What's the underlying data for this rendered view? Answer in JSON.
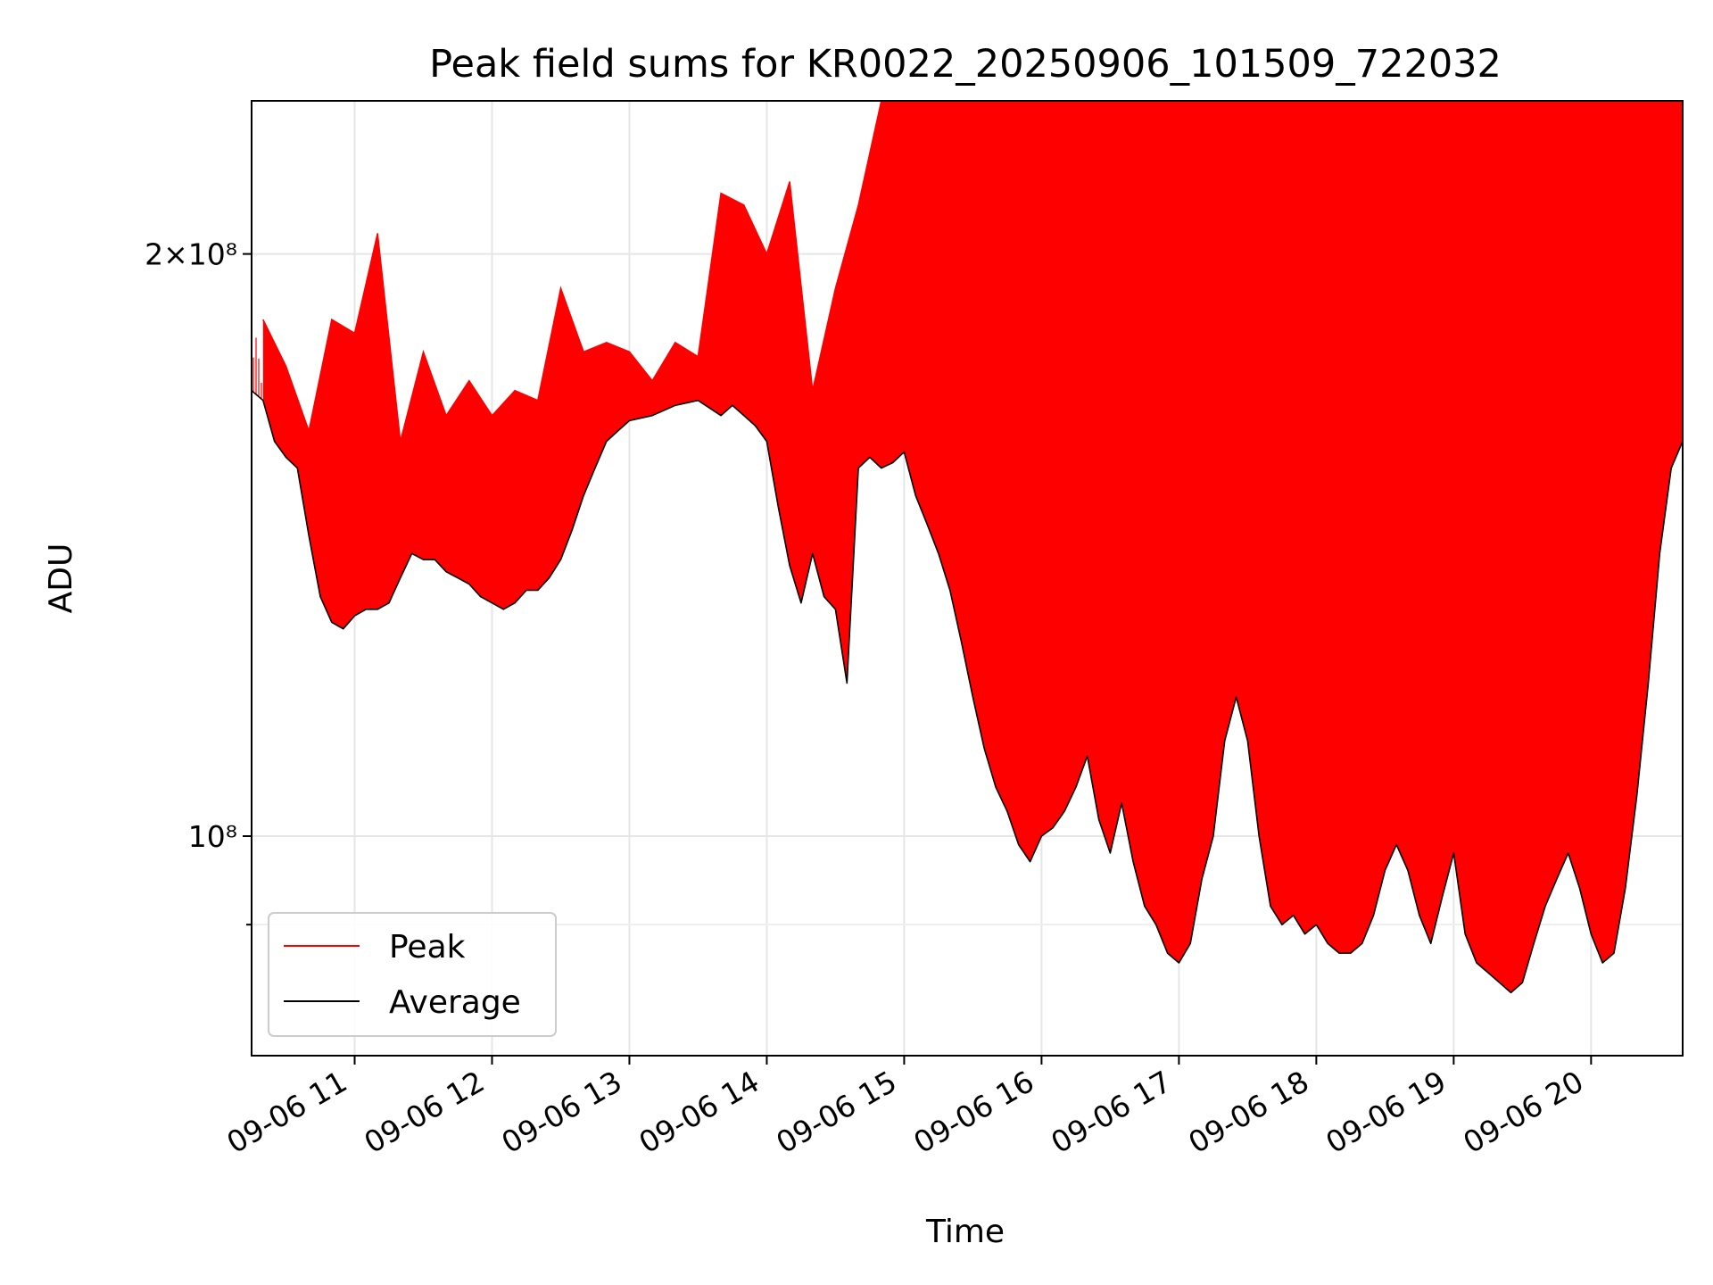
{
  "chart_data": {
    "type": "line",
    "title": "Peak field sums for KR0022_20250906_101509_722032",
    "xlabel": "Time",
    "ylabel": "ADU",
    "yscale": "log",
    "xlim": [
      "09-06 10:15",
      "09-06 20:40"
    ],
    "ylim": [
      77000000,
      240000000
    ],
    "grid": true,
    "legend_position": "lower-left",
    "x_ticks": [
      {
        "value": "09-06 11:00",
        "label": "09-06 11"
      },
      {
        "value": "09-06 12:00",
        "label": "09-06 12"
      },
      {
        "value": "09-06 13:00",
        "label": "09-06 13"
      },
      {
        "value": "09-06 14:00",
        "label": "09-06 14"
      },
      {
        "value": "09-06 15:00",
        "label": "09-06 15"
      },
      {
        "value": "09-06 16:00",
        "label": "09-06 16"
      },
      {
        "value": "09-06 17:00",
        "label": "09-06 17"
      },
      {
        "value": "09-06 18:00",
        "label": "09-06 18"
      },
      {
        "value": "09-06 19:00",
        "label": "09-06 19"
      },
      {
        "value": "09-06 20:00",
        "label": "09-06 20"
      }
    ],
    "y_ticks": [
      {
        "value": 200000000,
        "label": "2×10⁸"
      },
      {
        "value": 100000000,
        "label": "10⁸"
      }
    ],
    "y_minor_ticks": [
      90000000
    ],
    "series": [
      {
        "name": "Average",
        "color": "#000000",
        "x": [
          "09-06 10:15",
          "09-06 10:20",
          "09-06 10:25",
          "09-06 10:30",
          "09-06 10:35",
          "09-06 10:40",
          "09-06 10:45",
          "09-06 10:50",
          "09-06 10:55",
          "09-06 11:00",
          "09-06 11:05",
          "09-06 11:10",
          "09-06 11:15",
          "09-06 11:20",
          "09-06 11:25",
          "09-06 11:30",
          "09-06 11:35",
          "09-06 11:40",
          "09-06 11:45",
          "09-06 11:50",
          "09-06 11:55",
          "09-06 12:00",
          "09-06 12:05",
          "09-06 12:10",
          "09-06 12:15",
          "09-06 12:20",
          "09-06 12:25",
          "09-06 12:30",
          "09-06 12:35",
          "09-06 12:40",
          "09-06 12:45",
          "09-06 12:50",
          "09-06 12:55",
          "09-06 13:00",
          "09-06 13:10",
          "09-06 13:20",
          "09-06 13:30",
          "09-06 13:40",
          "09-06 13:45",
          "09-06 13:50",
          "09-06 13:55",
          "09-06 14:00",
          "09-06 14:05",
          "09-06 14:10",
          "09-06 14:15",
          "09-06 14:20",
          "09-06 14:25",
          "09-06 14:30",
          "09-06 14:35",
          "09-06 14:40",
          "09-06 14:45",
          "09-06 14:50",
          "09-06 14:55",
          "09-06 15:00",
          "09-06 15:05",
          "09-06 15:10",
          "09-06 15:15",
          "09-06 15:20",
          "09-06 15:25",
          "09-06 15:30",
          "09-06 15:35",
          "09-06 15:40",
          "09-06 15:45",
          "09-06 15:50",
          "09-06 15:55",
          "09-06 16:00",
          "09-06 16:05",
          "09-06 16:10",
          "09-06 16:15",
          "09-06 16:20",
          "09-06 16:25",
          "09-06 16:30",
          "09-06 16:35",
          "09-06 16:40",
          "09-06 16:45",
          "09-06 16:50",
          "09-06 16:55",
          "09-06 17:00",
          "09-06 17:05",
          "09-06 17:10",
          "09-06 17:15",
          "09-06 17:20",
          "09-06 17:25",
          "09-06 17:30",
          "09-06 17:35",
          "09-06 17:40",
          "09-06 17:45",
          "09-06 17:50",
          "09-06 17:55",
          "09-06 18:00",
          "09-06 18:05",
          "09-06 18:10",
          "09-06 18:15",
          "09-06 18:20",
          "09-06 18:25",
          "09-06 18:30",
          "09-06 18:35",
          "09-06 18:40",
          "09-06 18:45",
          "09-06 18:50",
          "09-06 18:55",
          "09-06 19:00",
          "09-06 19:05",
          "09-06 19:10",
          "09-06 19:15",
          "09-06 19:20",
          "09-06 19:25",
          "09-06 19:30",
          "09-06 19:35",
          "09-06 19:40",
          "09-06 19:45",
          "09-06 19:50",
          "09-06 19:55",
          "09-06 20:00",
          "09-06 20:05",
          "09-06 20:10",
          "09-06 20:15",
          "09-06 20:20",
          "09-06 20:25",
          "09-06 20:30",
          "09-06 20:35",
          "09-06 20:40"
        ],
        "y": [
          170000000,
          168000000,
          160000000,
          157000000,
          155000000,
          143000000,
          133000000,
          129000000,
          128000000,
          130000000,
          131000000,
          131000000,
          132000000,
          136000000,
          140000000,
          139000000,
          139000000,
          137000000,
          136000000,
          135000000,
          133000000,
          132000000,
          131000000,
          132000000,
          134000000,
          134000000,
          136000000,
          139000000,
          144000000,
          150000000,
          155000000,
          160000000,
          162000000,
          164000000,
          165000000,
          167000000,
          168000000,
          165000000,
          167000000,
          165000000,
          163000000,
          160000000,
          148000000,
          138000000,
          132000000,
          140000000,
          133000000,
          131000000,
          120000000,
          155000000,
          157000000,
          155000000,
          156000000,
          158000000,
          150000000,
          145000000,
          140000000,
          134000000,
          126000000,
          118000000,
          111000000,
          106000000,
          103000000,
          99000000,
          97000000,
          100000000,
          101000000,
          103000000,
          106000000,
          110000000,
          102000000,
          98000000,
          104000000,
          97000000,
          92000000,
          90000000,
          87000000,
          86000000,
          88000000,
          95000000,
          100000000,
          112000000,
          118000000,
          112000000,
          100000000,
          92000000,
          90000000,
          91000000,
          89000000,
          90000000,
          88000000,
          87000000,
          87000000,
          88000000,
          91000000,
          96000000,
          99000000,
          96000000,
          91000000,
          88000000,
          93000000,
          98000000,
          89000000,
          86000000,
          85000000,
          84000000,
          83000000,
          84000000,
          88000000,
          92000000,
          95000000,
          98000000,
          94000000,
          89000000,
          86000000,
          87000000,
          94000000,
          105000000,
          120000000,
          140000000,
          155000000,
          160000000
        ]
      },
      {
        "name": "Peak",
        "color": "#ff0000",
        "x": [
          "09-06 10:20",
          "09-06 10:30",
          "09-06 10:40",
          "09-06 10:50",
          "09-06 11:00",
          "09-06 11:10",
          "09-06 11:20",
          "09-06 11:30",
          "09-06 11:40",
          "09-06 11:50",
          "09-06 12:00",
          "09-06 12:10",
          "09-06 12:20",
          "09-06 12:30",
          "09-06 12:40",
          "09-06 12:50",
          "09-06 13:00",
          "09-06 13:10",
          "09-06 13:20",
          "09-06 13:30",
          "09-06 13:40",
          "09-06 13:50",
          "09-06 14:00",
          "09-06 14:10",
          "09-06 14:20",
          "09-06 14:30",
          "09-06 14:40",
          "09-06 14:50",
          "09-06 15:00",
          "09-06 15:10",
          "09-06 15:20",
          "09-06 15:30",
          "09-06 15:40",
          "09-06 15:50",
          "09-06 16:00",
          "09-06 16:10",
          "09-06 16:20",
          "09-06 16:30",
          "09-06 16:40",
          "09-06 16:50",
          "09-06 17:00",
          "09-06 17:10",
          "09-06 17:20",
          "09-06 17:30",
          "09-06 17:40",
          "09-06 17:50",
          "09-06 18:00",
          "09-06 18:10",
          "09-06 18:20",
          "09-06 18:30",
          "09-06 18:40",
          "09-06 18:50",
          "09-06 19:00",
          "09-06 19:10",
          "09-06 19:20",
          "09-06 19:30",
          "09-06 19:40",
          "09-06 19:50",
          "09-06 20:00",
          "09-06 20:10",
          "09-06 20:20",
          "09-06 20:30",
          "09-06 20:40"
        ],
        "y": [
          185000000,
          175000000,
          162000000,
          185000000,
          182000000,
          205000000,
          160000000,
          178000000,
          165000000,
          172000000,
          165000000,
          170000000,
          168000000,
          192000000,
          178000000,
          180000000,
          178000000,
          172000000,
          180000000,
          177000000,
          215000000,
          212000000,
          200000000,
          218000000,
          170000000,
          192000000,
          212000000,
          240000000,
          240000000,
          240000000,
          240000000,
          240000000,
          240000000,
          240000000,
          240000000,
          240000000,
          240000000,
          240000000,
          240000000,
          240000000,
          240000000,
          240000000,
          240000000,
          240000000,
          240000000,
          240000000,
          240000000,
          240000000,
          240000000,
          240000000,
          240000000,
          240000000,
          240000000,
          240000000,
          240000000,
          240000000,
          240000000,
          240000000,
          240000000,
          240000000,
          240000000,
          240000000,
          240000000
        ]
      }
    ]
  }
}
